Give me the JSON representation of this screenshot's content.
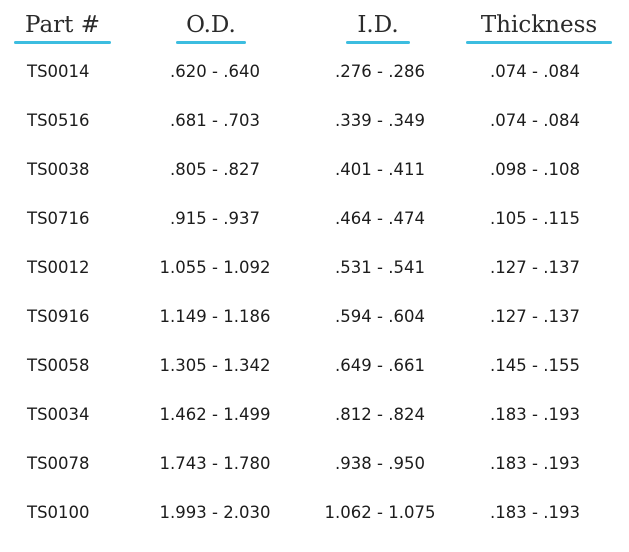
{
  "accent_color": "#3cbde0",
  "headers": {
    "part": "Part #",
    "od": "O.D.",
    "id": "I.D.",
    "thickness": "Thickness"
  },
  "rows": [
    {
      "part": "TS0014",
      "od": ".620 - .640",
      "id": ".276 - .286",
      "thickness": ".074 - .084"
    },
    {
      "part": "TS0516",
      "od": ".681 - .703",
      "id": ".339 - .349",
      "thickness": ".074 - .084"
    },
    {
      "part": "TS0038",
      "od": ".805 - .827",
      "id": ".401 - .411",
      "thickness": ".098 - .108"
    },
    {
      "part": "TS0716",
      "od": ".915 - .937",
      "id": ".464 - .474",
      "thickness": ".105 - .115"
    },
    {
      "part": "TS0012",
      "od": "1.055 - 1.092",
      "id": ".531 - .541",
      "thickness": ".127 - .137"
    },
    {
      "part": "TS0916",
      "od": "1.149 - 1.186",
      "id": ".594 - .604",
      "thickness": ".127 - .137"
    },
    {
      "part": "TS0058",
      "od": "1.305 - 1.342",
      "id": ".649 - .661",
      "thickness": ".145 - .155"
    },
    {
      "part": "TS0034",
      "od": "1.462 - 1.499",
      "id": ".812 - .824",
      "thickness": ".183 - .193"
    },
    {
      "part": "TS0078",
      "od": "1.743 - 1.780",
      "id": ".938 - .950",
      "thickness": ".183 - .193"
    },
    {
      "part": "TS0100",
      "od": "1.993 - 2.030",
      "id": "1.062 - 1.075",
      "thickness": ".183 - .193"
    }
  ]
}
